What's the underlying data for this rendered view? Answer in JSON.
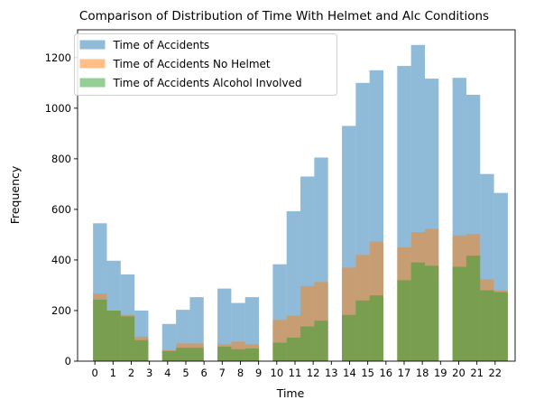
{
  "chart_data": {
    "type": "bar",
    "title": "Comparison of Distribution of Time With Helmet and Alc Conditions",
    "xlabel": "Time",
    "ylabel": "Frequency",
    "ylim": [
      0,
      1310
    ],
    "xlim": [
      -0.95,
      23.1
    ],
    "grid": false,
    "legend_position": "top-left",
    "overlap": "alpha-overlaid histograms",
    "x_ticks": [
      0,
      1,
      2,
      3,
      4,
      5,
      6,
      7,
      8,
      9,
      10,
      11,
      12,
      13,
      14,
      15,
      16,
      17,
      18,
      19,
      20,
      21,
      22
    ],
    "y_ticks": [
      0,
      200,
      400,
      600,
      800,
      1000,
      1200
    ],
    "bins": [
      [
        -0.1,
        0.66
      ],
      [
        0.66,
        1.42
      ],
      [
        1.42,
        2.18
      ],
      [
        2.18,
        2.94
      ],
      [
        3.7,
        4.46
      ],
      [
        4.46,
        5.22
      ],
      [
        5.22,
        5.98
      ],
      [
        6.74,
        7.5
      ],
      [
        7.5,
        8.26
      ],
      [
        8.26,
        9.02
      ],
      [
        9.78,
        10.54
      ],
      [
        10.54,
        11.3
      ],
      [
        11.3,
        12.06
      ],
      [
        12.06,
        12.82
      ],
      [
        13.58,
        14.34
      ],
      [
        14.34,
        15.1
      ],
      [
        15.1,
        15.86
      ],
      [
        16.62,
        17.38
      ],
      [
        17.38,
        18.14
      ],
      [
        18.14,
        18.9
      ],
      [
        19.66,
        20.42
      ],
      [
        20.42,
        21.18
      ],
      [
        21.18,
        21.94
      ],
      [
        21.94,
        22.7
      ]
    ],
    "series": [
      {
        "name": "Time of Accidents",
        "color": "#1f77b4",
        "values": [
          545,
          397,
          343,
          200,
          147,
          203,
          253,
          287,
          230,
          253,
          383,
          593,
          730,
          805,
          930,
          1100,
          1150,
          1167,
          1250,
          1117,
          1120,
          1053,
          740,
          665
        ]
      },
      {
        "name": "Time of Accidents No Helmet",
        "color": "#ff7f0e",
        "values": [
          267,
          200,
          183,
          97,
          43,
          70,
          70,
          67,
          77,
          67,
          163,
          180,
          297,
          313,
          370,
          420,
          473,
          450,
          510,
          523,
          497,
          503,
          323,
          280
        ]
      },
      {
        "name": "Time of Accidents Alcohol Involved",
        "color": "#2ca02c",
        "values": [
          243,
          200,
          177,
          83,
          40,
          53,
          53,
          57,
          47,
          50,
          73,
          93,
          137,
          160,
          183,
          240,
          260,
          320,
          390,
          377,
          373,
          417,
          280,
          273
        ]
      }
    ]
  }
}
